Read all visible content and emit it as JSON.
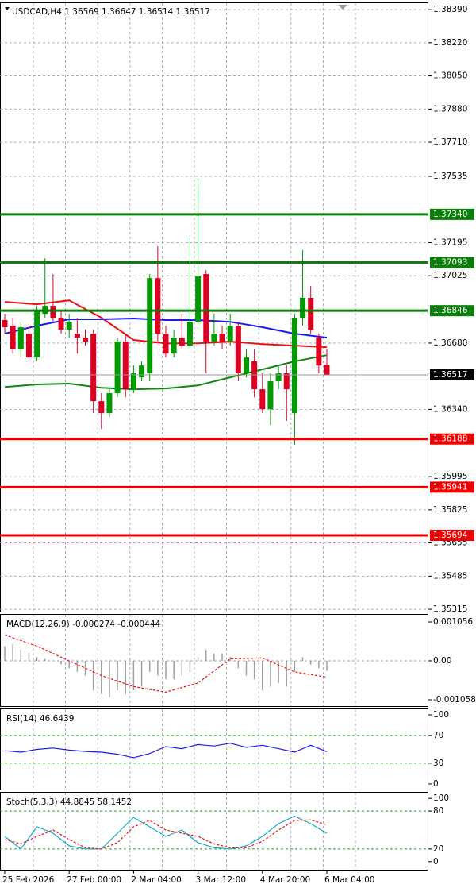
{
  "chart_data": [
    {
      "type": "candlestick",
      "title": "USDCAD,H4  1.36569 1.36647 1.36514 1.36517",
      "categories": [
        "25 Feb 2026",
        null,
        null,
        null,
        null,
        null,
        null,
        null,
        "27 Feb 00:00",
        null,
        null,
        null,
        null,
        null,
        null,
        null,
        "2 Mar 04:00",
        null,
        null,
        null,
        null,
        null,
        null,
        null,
        "3 Mar 12:00",
        null,
        null,
        null,
        null,
        null,
        null,
        null,
        "4 Mar 20:00",
        null,
        null,
        null,
        null,
        null,
        null,
        null,
        "6 Mar 04:00"
      ],
      "open": [
        1.36798,
        1.36769,
        1.36647,
        1.36728,
        1.36606,
        1.3683,
        1.36871,
        1.3681,
        1.36749,
        1.36728,
        1.36708,
        1.36728,
        1.36382,
        1.36321,
        1.36423,
        1.36688,
        1.36443,
        1.36504,
        1.36525,
        1.37013,
        1.36728,
        1.36626,
        1.36708,
        1.36667,
        1.36789,
        1.37034,
        1.36688,
        1.36728,
        1.36688,
        1.36769,
        1.36525,
        1.36586,
        1.36443,
        1.36341,
        1.36484,
        1.36525,
        1.36321,
        1.3681,
        1.36912,
        1.36708,
        1.36569
      ],
      "high": [
        1.3683,
        1.3681,
        1.36789,
        1.36769,
        1.36871,
        1.37115,
        1.37034,
        1.3685,
        1.3683,
        1.3681,
        1.36749,
        1.36749,
        1.36423,
        1.36443,
        1.36708,
        1.36728,
        1.36565,
        1.36586,
        1.37034,
        1.37176,
        1.36769,
        1.36749,
        1.3683,
        1.37217,
        1.37522,
        1.37054,
        1.3683,
        1.36769,
        1.3683,
        1.36789,
        1.36647,
        1.36647,
        1.36525,
        1.36525,
        1.36565,
        1.36565,
        1.3683,
        1.37156,
        1.36973,
        1.36728,
        1.36647
      ],
      "low": [
        1.36728,
        1.36626,
        1.36606,
        1.36586,
        1.36586,
        1.3681,
        1.36789,
        1.36728,
        1.36708,
        1.36626,
        1.36667,
        1.36321,
        1.36239,
        1.36301,
        1.36402,
        1.36402,
        1.36423,
        1.36484,
        1.36484,
        1.36688,
        1.36606,
        1.36606,
        1.36647,
        1.36647,
        1.36769,
        1.36525,
        1.36667,
        1.36647,
        1.36667,
        1.36484,
        1.36504,
        1.36402,
        1.36321,
        1.3626,
        1.36443,
        1.3628,
        1.36158,
        1.36769,
        1.36728,
        1.36525,
        1.36514
      ],
      "close": [
        1.36761,
        1.36647,
        1.36761,
        1.36606,
        1.3685,
        1.36871,
        1.3681,
        1.36749,
        1.36789,
        1.36708,
        1.36688,
        1.36382,
        1.36321,
        1.36423,
        1.36688,
        1.36443,
        1.36525,
        1.36565,
        1.37013,
        1.36728,
        1.36626,
        1.36708,
        1.36667,
        1.36789,
        1.37022,
        1.36688,
        1.36728,
        1.36688,
        1.36769,
        1.36525,
        1.36606,
        1.36443,
        1.36341,
        1.36484,
        1.36525,
        1.36443,
        1.3681,
        1.36912,
        1.36749,
        1.36565,
        1.36517
      ],
      "up_color": "#009900",
      "down_color": "#dd0022",
      "series": [
        {
          "color": "#ee1111",
          "x": [
            0,
            4,
            8,
            12,
            16,
            20,
            24,
            28,
            32,
            36,
            40
          ],
          "values": [
            1.36891,
            1.36879,
            1.36899,
            1.3681,
            1.36696,
            1.36679,
            1.36679,
            1.36688,
            1.36675,
            1.36667,
            1.36659
          ]
        },
        {
          "color": "#1a1aee",
          "x": [
            0,
            4,
            8,
            12,
            16,
            20,
            24,
            28,
            32,
            36,
            40
          ],
          "values": [
            1.36728,
            1.36769,
            1.36802,
            1.36802,
            1.36806,
            1.36798,
            1.36798,
            1.36789,
            1.36761,
            1.36728,
            1.36708
          ]
        },
        {
          "color": "#118811",
          "x": [
            0,
            4,
            8,
            12,
            16,
            20,
            24,
            28,
            32,
            36,
            40
          ],
          "values": [
            1.36455,
            1.36468,
            1.36472,
            1.36451,
            1.36443,
            1.36447,
            1.36463,
            1.36504,
            1.36545,
            1.36586,
            1.36618
          ]
        }
      ],
      "levels": [
        {
          "value": 1.3734,
          "label": "1.37340",
          "color": "#0b7d0b"
        },
        {
          "value": 1.37093,
          "label": "1.37093",
          "color": "#0b7d0b"
        },
        {
          "value": 1.36846,
          "label": "1.36846",
          "color": "#0b7d0b"
        },
        {
          "value": 1.36188,
          "label": "1.36188",
          "color": "#ee0000"
        },
        {
          "value": 1.35941,
          "label": "1.35941",
          "color": "#ee0000"
        },
        {
          "value": 1.35694,
          "label": "1.35694",
          "color": "#ee0000"
        }
      ],
      "current_price": {
        "value": 1.36517,
        "label": "1.36517"
      },
      "ylim": [
        1.35303,
        1.38423
      ],
      "yticks": [
        {
          "value": 1.3839,
          "label": "1.38390"
        },
        {
          "value": 1.3822,
          "label": "1.38220"
        },
        {
          "value": 1.3805,
          "label": "1.38050"
        },
        {
          "value": 1.3788,
          "label": "1.37880"
        },
        {
          "value": 1.3771,
          "label": "1.37710"
        },
        {
          "value": 1.37535,
          "label": "1.37535"
        },
        {
          "value": 1.37195,
          "label": "1.37195"
        },
        {
          "value": 1.37025,
          "label": "1.37025"
        },
        {
          "value": 1.3668,
          "label": "1.36680"
        },
        {
          "value": 1.3634,
          "label": "1.36340"
        },
        {
          "value": 1.35995,
          "label": "1.35995"
        },
        {
          "value": 1.35825,
          "label": "1.35825"
        },
        {
          "value": 1.35655,
          "label": "1.35655"
        },
        {
          "value": 1.35485,
          "label": "1.35485"
        },
        {
          "value": 1.35315,
          "label": "1.35315"
        }
      ],
      "grid": true
    },
    {
      "type": "macd",
      "title": "MACD(12,26,9) -0.000274 -0.000444",
      "values": [
        0.0004,
        0.00045,
        0.0003,
        0.0002,
        0.0001,
        5e-05,
        0,
        -0.0001,
        -0.0002,
        -0.0003,
        -0.0004,
        -0.0008,
        -0.0009,
        -0.001,
        -0.0008,
        -0.0009,
        -0.0008,
        -0.0007,
        -0.0003,
        -0.0004,
        -0.0005,
        -0.0005,
        -0.0004,
        -0.0003,
        0.0001,
        0.0003,
        0.0002,
        0.0002,
        0.0001,
        -0.0002,
        -0.0004,
        -0.0005,
        -0.0008,
        -0.0007,
        -0.0006,
        -0.0007,
        -0.0003,
        0.0001,
        -0.0001,
        -0.0002,
        -0.000274
      ],
      "color": "#a0a0a0",
      "series": [
        {
          "color": "#ee1111",
          "x": [
            0,
            4,
            8,
            12,
            16,
            20,
            24,
            28,
            32,
            36,
            40
          ],
          "values": [
            0.0007,
            0.0004,
            0,
            -0.0004,
            -0.0007,
            -0.00085,
            -0.0006,
            5e-05,
            8e-05,
            -0.0003,
            -0.000444
          ]
        }
      ],
      "ylim": [
        -0.00123,
        0.00125
      ],
      "yticks": [
        {
          "value": 0.001056,
          "label": "0.001056"
        },
        {
          "value": 0,
          "label": "0.00"
        },
        {
          "value": -0.001058,
          "label": "-0.001058"
        }
      ]
    },
    {
      "type": "line",
      "title": "RSI(14) 46.6439",
      "series": [
        {
          "color": "#1a1aee",
          "x": [
            0,
            2,
            4,
            6,
            8,
            10,
            12,
            14,
            16,
            18,
            20,
            22,
            24,
            26,
            28,
            30,
            32,
            34,
            36,
            38,
            40
          ],
          "values": [
            48,
            46,
            50,
            52,
            49,
            47,
            46,
            43,
            38,
            44,
            54,
            51,
            57,
            55,
            59,
            53,
            56,
            51,
            46,
            56,
            46.6439
          ]
        }
      ],
      "levels": [
        70,
        30
      ],
      "level_color": "#2a9a2a",
      "ylim": [
        -8.1,
        108.1
      ],
      "yticks": [
        100,
        70,
        30,
        0
      ]
    },
    {
      "type": "line",
      "title": "Stoch(5,3,3) 44.8845 58.1452",
      "series": [
        {
          "color": "#11aacc",
          "x": [
            0,
            2,
            4,
            6,
            8,
            10,
            12,
            14,
            16,
            18,
            20,
            22,
            24,
            26,
            28,
            30,
            32,
            34,
            36,
            38,
            40
          ],
          "values": [
            40,
            20,
            55,
            45,
            25,
            20,
            20,
            45,
            70,
            55,
            40,
            50,
            30,
            22,
            20,
            25,
            40,
            60,
            72,
            60,
            44.8845
          ]
        },
        {
          "color": "#ee1111",
          "dashed": true,
          "x": [
            0,
            2,
            4,
            6,
            8,
            10,
            12,
            14,
            16,
            18,
            20,
            22,
            24,
            26,
            28,
            30,
            32,
            34,
            36,
            38,
            40
          ],
          "values": [
            35,
            28,
            40,
            50,
            35,
            22,
            20,
            30,
            55,
            65,
            50,
            45,
            40,
            28,
            22,
            22,
            32,
            50,
            65,
            66,
            58.1452
          ]
        }
      ],
      "levels": [
        80,
        20
      ],
      "level_color": "#2a9a2a",
      "ylim": [
        -12.8,
        109
      ],
      "yticks": [
        100,
        80,
        20,
        0
      ]
    }
  ]
}
